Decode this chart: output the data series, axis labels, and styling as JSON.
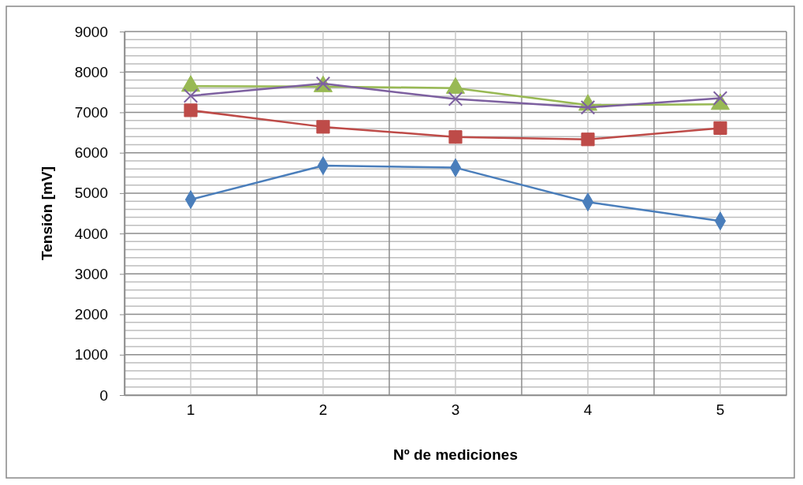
{
  "chart_data": {
    "type": "line",
    "xlabel": "Nº de mediciones",
    "ylabel": "Tensión [mV]",
    "categories": [
      "1",
      "2",
      "3",
      "4",
      "5"
    ],
    "series": [
      {
        "color": "#4a7ebb",
        "marker": "diamond",
        "values": [
          4840,
          5680,
          5630,
          4780,
          4310
        ]
      },
      {
        "color": "#be4b48",
        "marker": "square",
        "values": [
          7050,
          6640,
          6390,
          6330,
          6610
        ]
      },
      {
        "color": "#98b954",
        "marker": "triangle",
        "values": [
          7650,
          7640,
          7600,
          7180,
          7200
        ]
      },
      {
        "color": "#7d60a0",
        "marker": "cross",
        "values": [
          7410,
          7710,
          7330,
          7120,
          7350
        ]
      }
    ],
    "ylim": [
      0,
      9000
    ],
    "yticks": [
      0,
      1000,
      2000,
      3000,
      4000,
      5000,
      6000,
      7000,
      8000,
      9000
    ],
    "grid": true
  }
}
